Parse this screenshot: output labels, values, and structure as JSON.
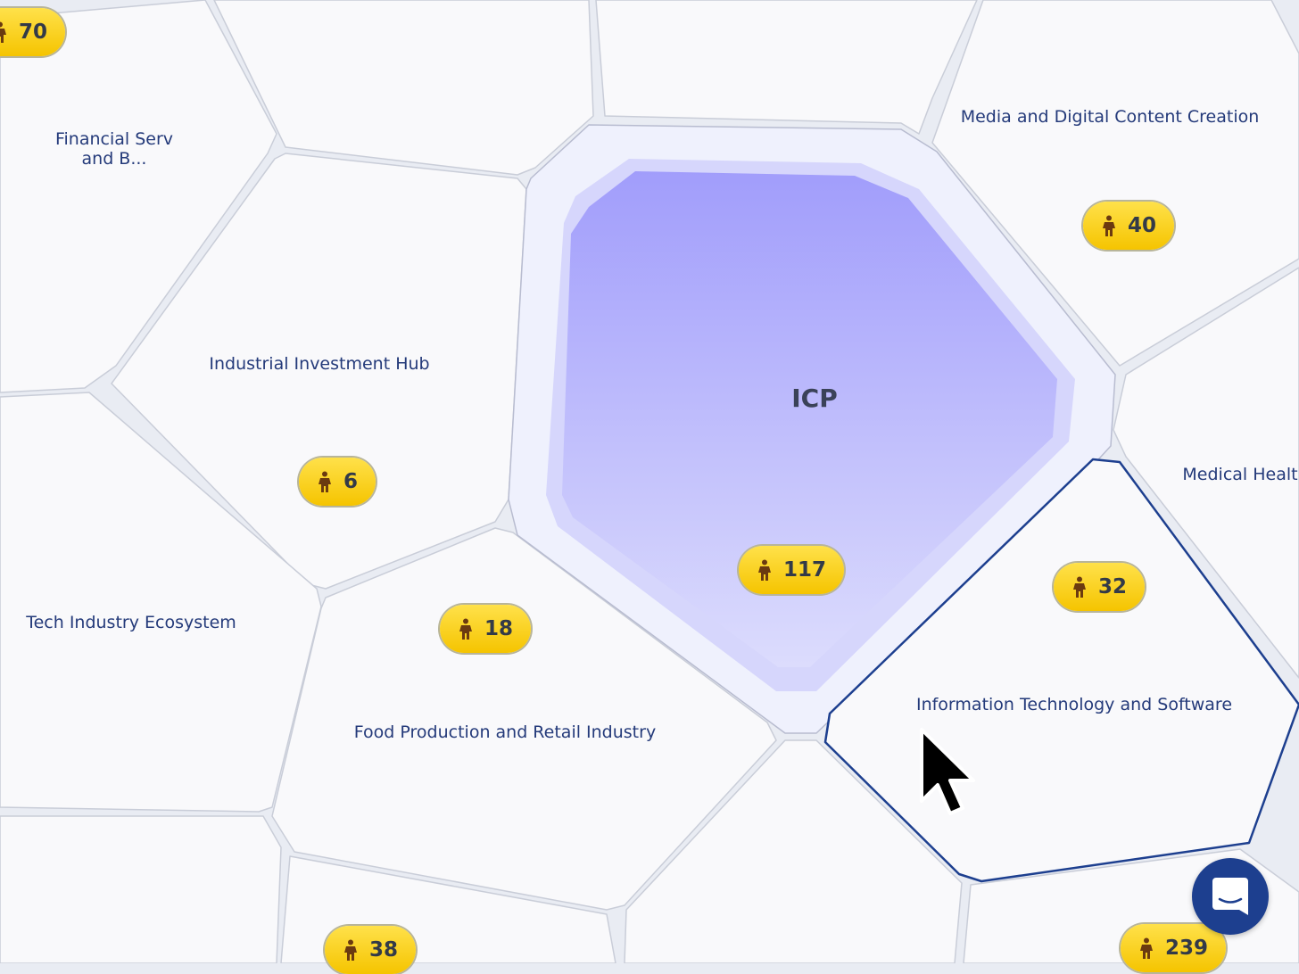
{
  "center": {
    "title": "ICP",
    "count": "117"
  },
  "segments": [
    {
      "label": "Financial Serv\nand B...",
      "count": "70"
    },
    {
      "label": "Industrial Investment Hub",
      "count": "6"
    },
    {
      "label": "Media and Digital Content Creation",
      "count": "40"
    },
    {
      "label": "Medical Healt",
      "count": ""
    },
    {
      "label": "Tech Industry Ecosystem",
      "count": ""
    },
    {
      "label": "Food Production and Retail Industry",
      "count": "18"
    },
    {
      "label": "Information Technology and Software",
      "count": "32"
    },
    {
      "label": "",
      "count": "38"
    },
    {
      "label": "",
      "count": "239"
    }
  ],
  "icons": {
    "badge": "person-icon",
    "chat": "chat-icon",
    "cursor": "cursor-arrow-icon"
  },
  "colors": {
    "badge": "#f5c400",
    "icp": "#a19dfb",
    "highlight": "#1d3f8f",
    "label": "#243a7a"
  }
}
